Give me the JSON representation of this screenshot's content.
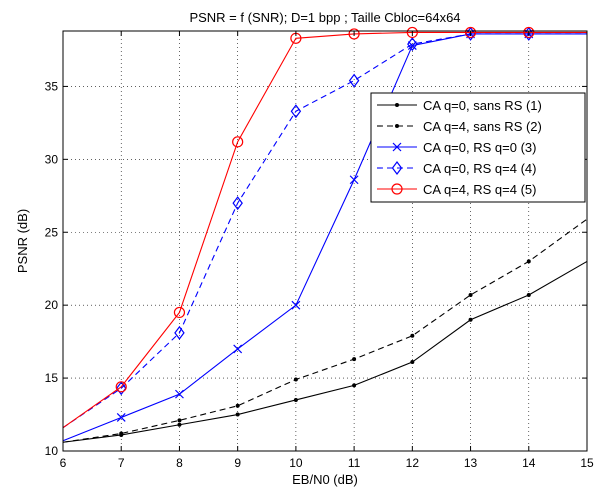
{
  "chart_data": {
    "type": "line",
    "title": "PSNR = f (SNR); D=1 bpp ; Taille Cbloc=64x64",
    "xlabel": "EB/N0 (dB)",
    "ylabel": "PSNR (dB)",
    "xlim": [
      6,
      15
    ],
    "ylim": [
      10,
      38.8
    ],
    "xticks": [
      6,
      7,
      8,
      9,
      10,
      11,
      12,
      13,
      14,
      15
    ],
    "yticks": [
      10,
      15,
      20,
      25,
      30,
      35
    ],
    "grid": true,
    "legend_position": "upper right",
    "series": [
      {
        "name": "CA q=0, sans RS (1)",
        "color": "#000000",
        "line_style": "solid",
        "marker": "dot",
        "x": [
          6,
          7,
          8,
          9,
          10,
          11,
          12,
          13,
          14,
          15
        ],
        "y": [
          10.6,
          11.1,
          11.8,
          12.5,
          13.5,
          14.5,
          16.1,
          19.0,
          20.7,
          23.0
        ]
      },
      {
        "name": "CA q=4, sans RS (2)",
        "color": "#000000",
        "line_style": "dashed",
        "marker": "dot",
        "x": [
          6,
          7,
          8,
          9,
          10,
          11,
          12,
          13,
          14,
          15
        ],
        "y": [
          10.6,
          11.2,
          12.1,
          13.1,
          14.9,
          16.3,
          17.9,
          20.7,
          23.0,
          25.9
        ]
      },
      {
        "name": "CA q=0, RS q=0  (3)",
        "color": "#0000ff",
        "line_style": "solid",
        "marker": "x",
        "x": [
          6,
          7,
          8,
          9,
          10,
          11,
          12,
          13,
          14,
          15
        ],
        "y": [
          10.7,
          12.3,
          13.9,
          17.0,
          20.0,
          28.6,
          37.8,
          38.6,
          38.6,
          38.6
        ]
      },
      {
        "name": "CA q=0, RS q=4  (4)",
        "color": "#0000ff",
        "line_style": "dashed",
        "marker": "diamond",
        "x": [
          6,
          7,
          8,
          9,
          10,
          11,
          12,
          13,
          14,
          15
        ],
        "y": [
          11.6,
          14.3,
          18.1,
          27.0,
          33.3,
          35.4,
          37.9,
          38.6,
          38.6,
          38.6
        ]
      },
      {
        "name": "CA q=4, RS q=4  (5)",
        "color": "#ff0000",
        "line_style": "solid",
        "marker": "circle",
        "x": [
          6,
          7,
          8,
          9,
          10,
          11,
          12,
          13,
          14,
          15
        ],
        "y": [
          11.6,
          14.4,
          19.5,
          31.2,
          38.3,
          38.6,
          38.7,
          38.7,
          38.7,
          38.7
        ]
      }
    ]
  }
}
